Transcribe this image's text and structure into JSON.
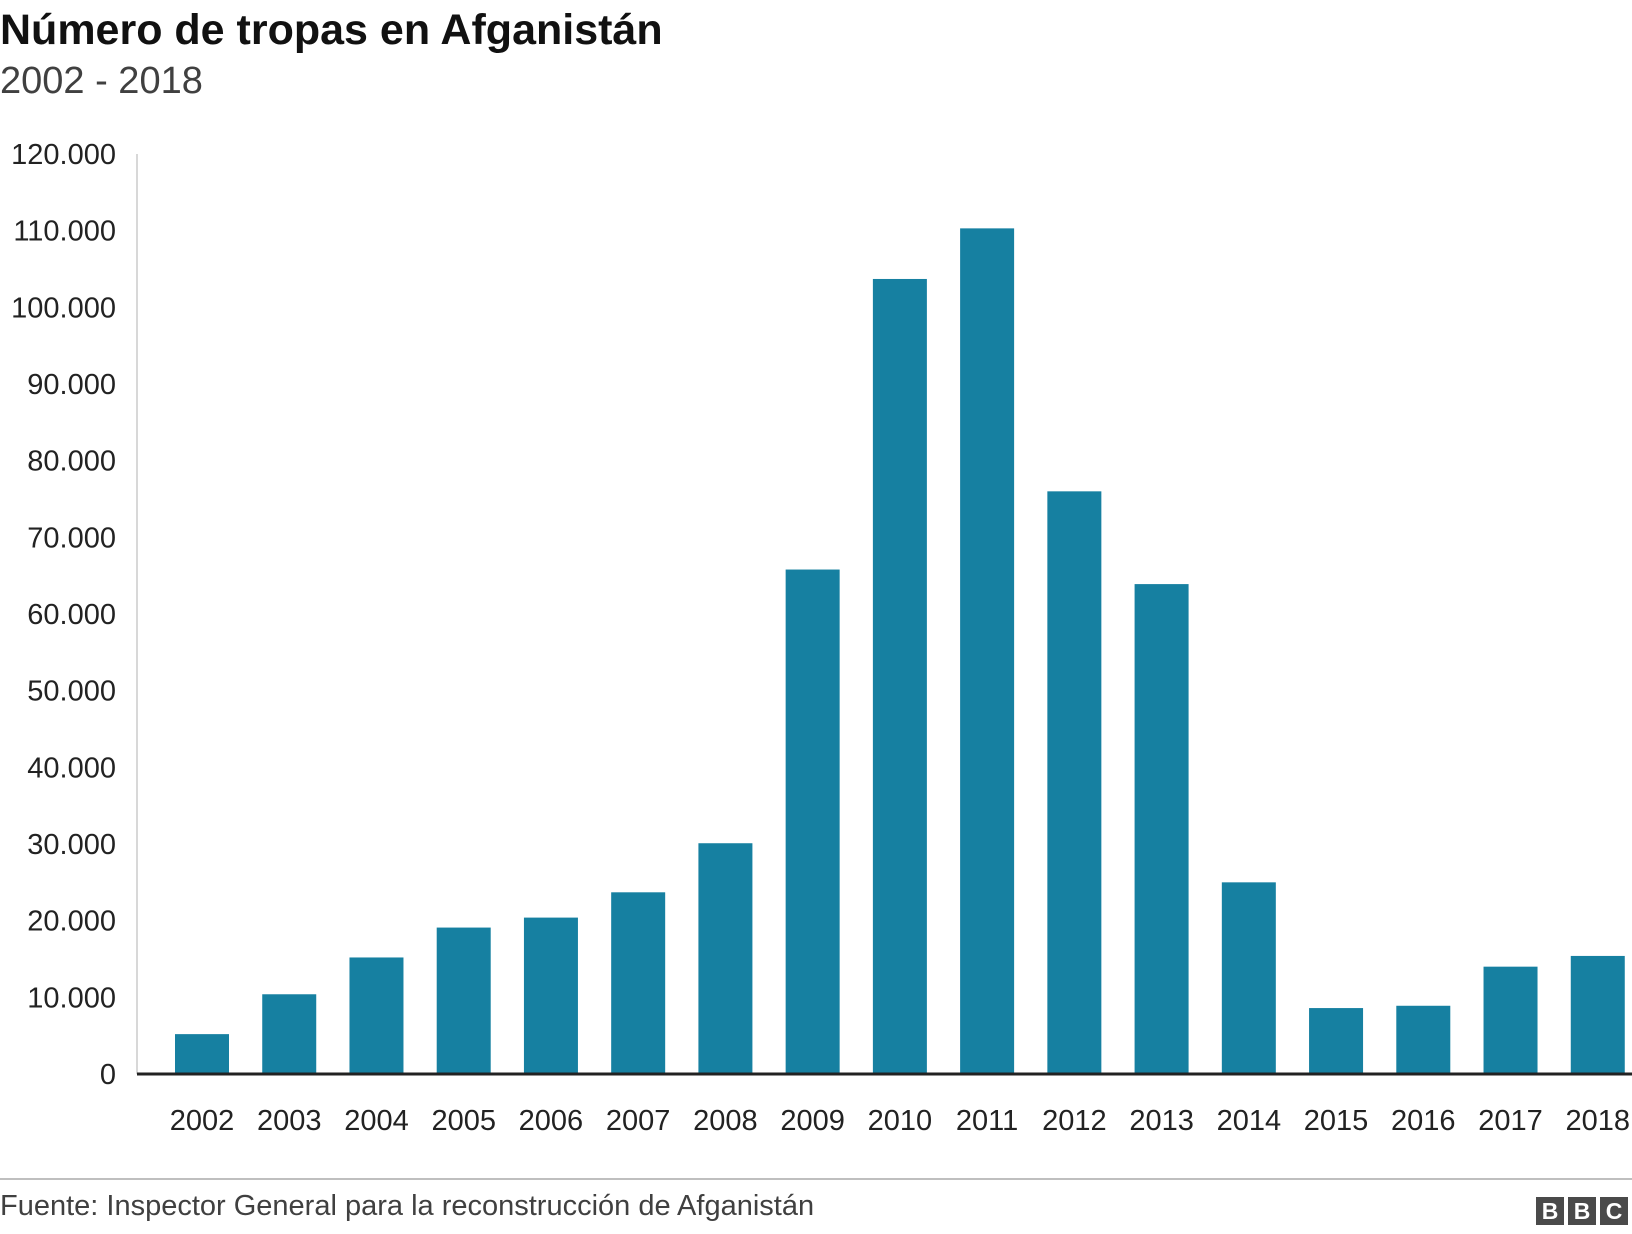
{
  "header": {
    "title": "Número de tropas en Afganistán",
    "subtitle": "2002 - 2018"
  },
  "footer": {
    "source": "Fuente: Inspector General para la reconstrucción de Afganistán",
    "logo_letters": [
      "B",
      "B",
      "C"
    ]
  },
  "colors": {
    "bar": "#1680a1",
    "axis": "#222222",
    "yaxis_line": "#cccccc"
  },
  "chart_data": {
    "type": "bar",
    "title": "Número de tropas en Afganistán",
    "subtitle": "2002 - 2018",
    "categories": [
      "2002",
      "2003",
      "2004",
      "2005",
      "2006",
      "2007",
      "2008",
      "2009",
      "2010",
      "2011",
      "2012",
      "2013",
      "2014",
      "2015",
      "2016",
      "2017",
      "2018"
    ],
    "values": [
      5200,
      10400,
      15200,
      19100,
      20400,
      23700,
      30100,
      65800,
      103700,
      110300,
      76000,
      63900,
      25000,
      8600,
      8900,
      14000,
      15400
    ],
    "ylim": [
      0,
      120000
    ],
    "yticks": [
      0,
      10000,
      20000,
      30000,
      40000,
      50000,
      60000,
      70000,
      80000,
      90000,
      100000,
      110000,
      120000
    ],
    "ytick_labels": [
      "0",
      "10.000",
      "20.000",
      "30.000",
      "40.000",
      "50.000",
      "60.000",
      "70.000",
      "80.000",
      "90.000",
      "100.000",
      "110.000",
      "120.000"
    ],
    "grid": false,
    "legend": "none"
  }
}
